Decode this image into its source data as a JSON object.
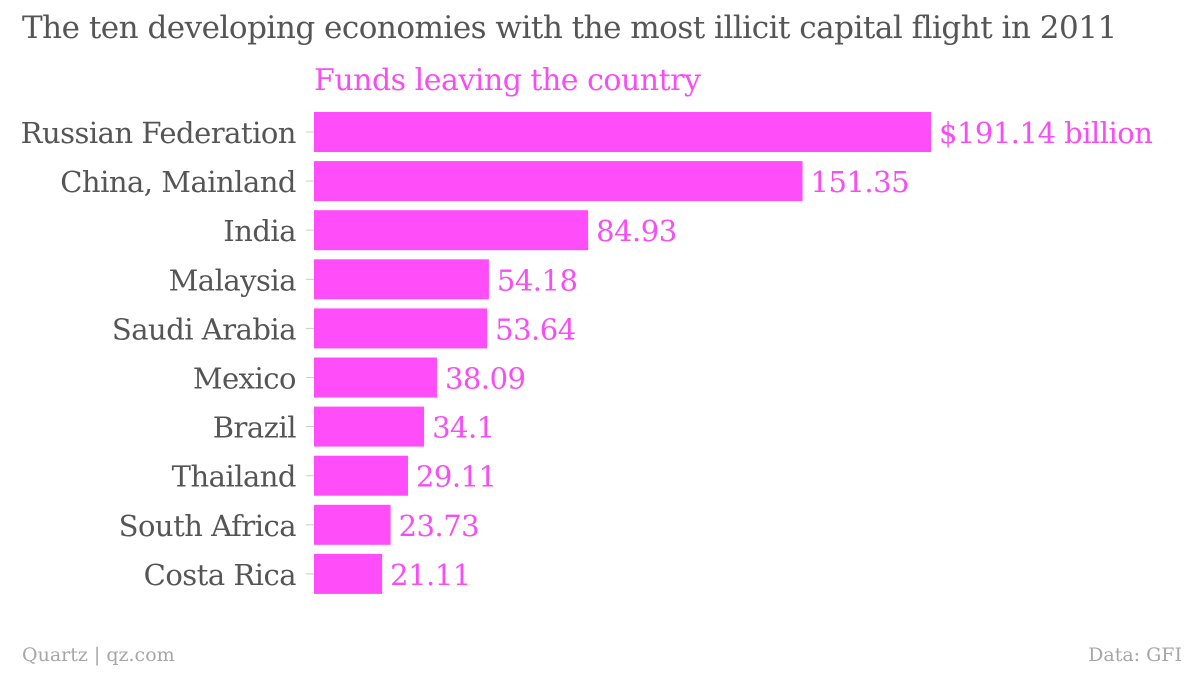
{
  "chart_data": {
    "type": "bar",
    "orientation": "horizontal",
    "title": "The ten developing economies with the most illicit capital flight in 2011",
    "series": [
      {
        "name": "Funds leaving the country",
        "values": [
          191.14,
          151.35,
          84.93,
          54.18,
          53.64,
          38.09,
          34.1,
          29.11,
          23.73,
          21.11
        ]
      }
    ],
    "categories": [
      "Russian Federation",
      "China, Mainland",
      "India",
      "Malaysia",
      "Saudi Arabia",
      "Mexico",
      "Brazil",
      "Thailand",
      "South Africa",
      "Costa Rica"
    ],
    "data_labels": [
      "$191.14 billion",
      "151.35",
      "84.93",
      "54.18",
      "53.64",
      "38.09",
      "34.1",
      "29.11",
      "23.73",
      "21.11"
    ],
    "xlim": [
      0,
      191.14
    ],
    "grid": false,
    "legend": "none",
    "colors": {
      "bar": "#ff4df9",
      "label": "#f74df3",
      "title": "#555555",
      "category": "#555555",
      "footer": "#a6a6a6",
      "tick": "#cccccc"
    }
  },
  "footer": {
    "source_left": "Quartz | qz.com",
    "source_right": "Data: GFI"
  }
}
